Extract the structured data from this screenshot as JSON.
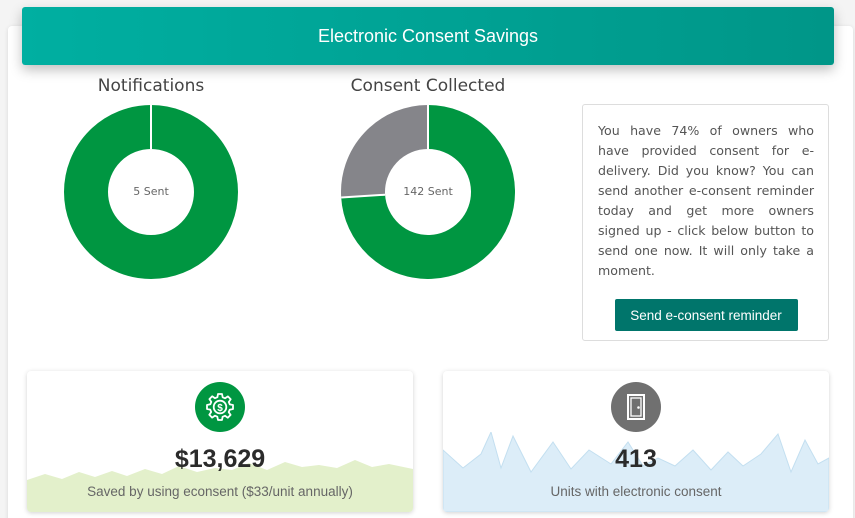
{
  "header": {
    "title": "Electronic Consent Savings"
  },
  "notifications": {
    "title": "Notifications",
    "center_label": "5 Sent",
    "colors": {
      "primary": "#009641",
      "secondary": "#85858a"
    },
    "segments": [
      {
        "name": "sent",
        "value": 5
      }
    ]
  },
  "consent": {
    "title": "Consent Collected",
    "center_label": "142 Sent",
    "colors": {
      "primary": "#009641",
      "secondary": "#85858a"
    },
    "segments": [
      {
        "name": "collected",
        "value": 74
      },
      {
        "name": "remaining",
        "value": 26
      }
    ]
  },
  "info": {
    "text": "You have 74% of owners who have provided consent for e-delivery. Did you know? You can send another e-consent reminder today and get more owners signed up - click below button to send one now. It will only take a moment.",
    "button_label": "Send e-consent reminder"
  },
  "savings": {
    "icon": "dollar-gear-icon",
    "value": "$13,629",
    "caption": "Saved by using econsent ($33/unit annually)",
    "accent": "#009641",
    "wave_color": "#e3f0cb"
  },
  "units": {
    "icon": "door-icon",
    "value": "413",
    "caption": "Units with electronic consent",
    "accent": "#707070",
    "wave_color": "#dcedf8"
  }
}
